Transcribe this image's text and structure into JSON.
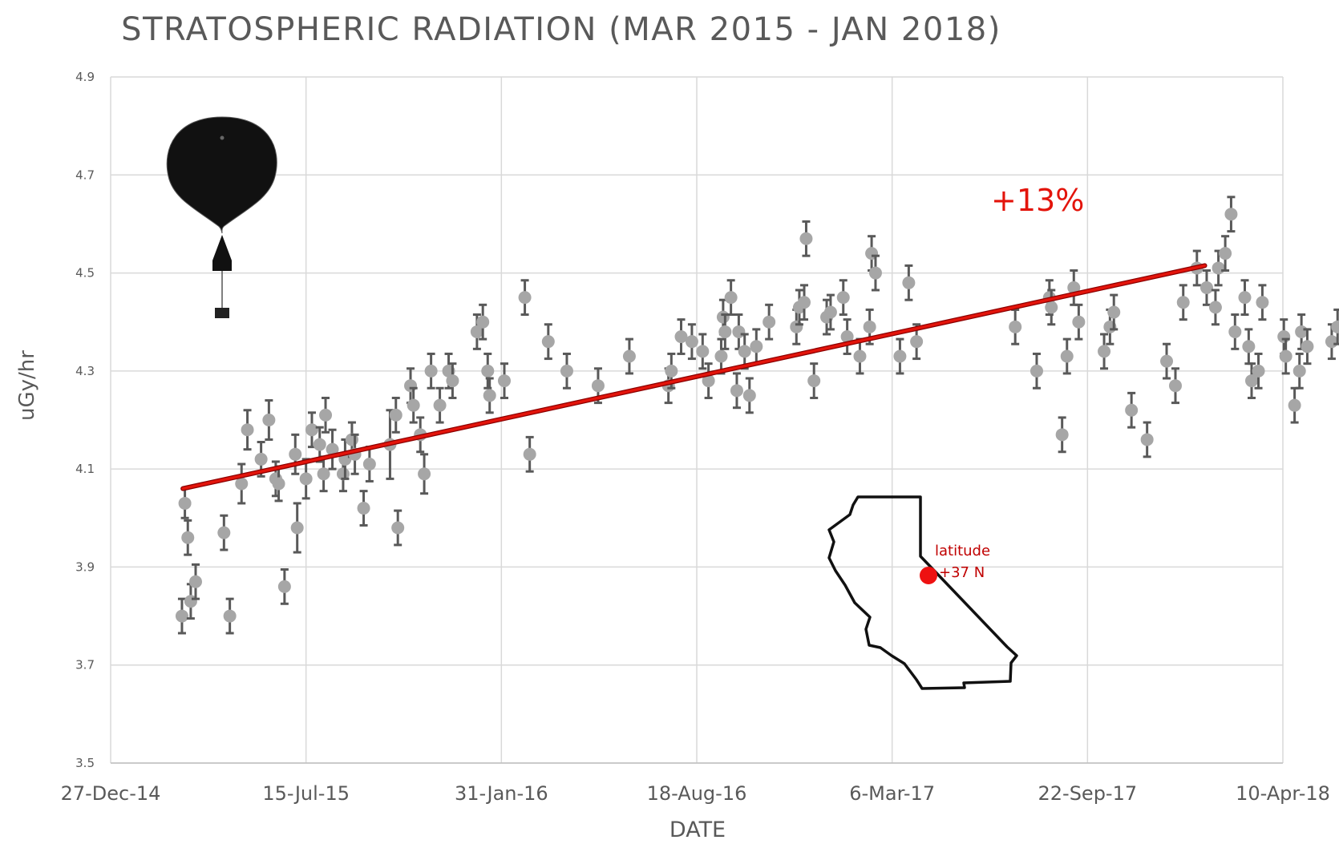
{
  "chart_data": {
    "type": "scatter",
    "title": "STRATOSPHERIC RADIATION (MAR 2015 - JAN 2018)",
    "xlabel": "DATE",
    "ylabel": "uGy/hr",
    "x_ticks": [
      "27-Dec-14",
      "15-Jul-15",
      "31-Jan-16",
      "18-Aug-16",
      "6-Mar-17",
      "22-Sep-17",
      "10-Apr-18"
    ],
    "x_range_days": [
      0,
      1200
    ],
    "ylim": [
      3.5,
      4.9
    ],
    "y_ticks": [
      "3.5",
      "3.7",
      "3.9",
      "4.1",
      "4.3",
      "4.5",
      "4.7",
      "4.9"
    ],
    "grid": true,
    "annotation_trend": "+13%",
    "annotation_lat_line1": "latitude",
    "annotation_lat_line2": "+37 N",
    "trend_line": {
      "x_start_days": 74,
      "y_start": 4.06,
      "x_end_days": 1120,
      "y_end": 4.515,
      "color": "#e3140b"
    },
    "series": [
      {
        "name": "dose rate",
        "x_days": [
          73,
          76,
          79,
          82,
          87,
          116,
          122,
          134,
          140,
          154,
          162,
          169,
          172,
          178,
          189,
          191,
          200,
          206,
          214,
          218,
          220,
          227,
          238,
          240,
          247,
          250,
          259,
          265,
          286,
          292,
          294,
          307,
          310,
          317,
          321,
          328,
          337,
          346,
          350,
          375,
          381,
          386,
          388,
          403,
          424,
          429,
          448,
          467,
          499,
          531,
          571,
          574,
          584,
          595,
          606,
          612,
          625,
          627,
          629,
          635,
          641,
          643,
          649,
          654,
          661,
          674,
          702,
          705,
          710,
          712,
          720,
          733,
          737,
          750,
          754,
          767,
          777,
          779,
          783,
          808,
          817,
          825,
          926,
          948,
          961,
          963,
          974,
          979,
          986,
          991,
          1017,
          1023,
          1027,
          1045,
          1061,
          1081,
          1090,
          1098,
          1112,
          1122,
          1131,
          1134,
          1141,
          1147,
          1151,
          1161,
          1165,
          1168,
          1175,
          1179,
          1201,
          1203,
          1212,
          1217,
          1219,
          1225,
          1250,
          1256
        ],
        "values": [
          3.8,
          4.03,
          3.96,
          3.83,
          3.87,
          3.97,
          3.8,
          4.07,
          4.18,
          4.12,
          4.2,
          4.08,
          4.07,
          3.86,
          4.13,
          3.98,
          4.08,
          4.18,
          4.15,
          4.09,
          4.21,
          4.14,
          4.09,
          4.12,
          4.16,
          4.13,
          4.02,
          4.11,
          4.15,
          4.21,
          3.98,
          4.27,
          4.23,
          4.17,
          4.09,
          4.3,
          4.23,
          4.3,
          4.28,
          4.38,
          4.4,
          4.3,
          4.25,
          4.28,
          4.45,
          4.13,
          4.36,
          4.3,
          4.27,
          4.33,
          4.27,
          4.3,
          4.37,
          4.36,
          4.34,
          4.28,
          4.33,
          4.41,
          4.38,
          4.45,
          4.26,
          4.38,
          4.34,
          4.25,
          4.35,
          4.4,
          4.39,
          4.43,
          4.44,
          4.57,
          4.28,
          4.41,
          4.42,
          4.45,
          4.37,
          4.33,
          4.39,
          4.54,
          4.5,
          4.33,
          4.48,
          4.36,
          4.39,
          4.3,
          4.45,
          4.43,
          4.17,
          4.33,
          4.47,
          4.4,
          4.34,
          4.39,
          4.42,
          4.22,
          4.16,
          4.32,
          4.27,
          4.44,
          4.51,
          4.47,
          4.43,
          4.51,
          4.54,
          4.62,
          4.38,
          4.45,
          4.35,
          4.28,
          4.3,
          4.44,
          4.37,
          4.33,
          4.23,
          4.3,
          4.38,
          4.35,
          4.36,
          4.39
        ],
        "errors": [
          0.035,
          0.03,
          0.035,
          0.035,
          0.035,
          0.035,
          0.035,
          0.04,
          0.04,
          0.035,
          0.04,
          0.035,
          0.035,
          0.035,
          0.04,
          0.05,
          0.04,
          0.035,
          0.035,
          0.035,
          0.035,
          0.04,
          0.035,
          0.04,
          0.035,
          0.04,
          0.035,
          0.035,
          0.07,
          0.035,
          0.035,
          0.035,
          0.035,
          0.035,
          0.04,
          0.035,
          0.035,
          0.035,
          0.035,
          0.035,
          0.035,
          0.035,
          0.035,
          0.035,
          0.035,
          0.035,
          0.035,
          0.035,
          0.035,
          0.035,
          0.035,
          0.035,
          0.035,
          0.035,
          0.035,
          0.035,
          0.035,
          0.035,
          0.035,
          0.035,
          0.035,
          0.035,
          0.035,
          0.035,
          0.035,
          0.035,
          0.035,
          0.035,
          0.035,
          0.035,
          0.035,
          0.035,
          0.035,
          0.035,
          0.035,
          0.035,
          0.035,
          0.035,
          0.035,
          0.035,
          0.035,
          0.035,
          0.035,
          0.035,
          0.035,
          0.035,
          0.035,
          0.035,
          0.035,
          0.035,
          0.035,
          0.035,
          0.035,
          0.035,
          0.035,
          0.035,
          0.035,
          0.035,
          0.035,
          0.035,
          0.035,
          0.035,
          0.035,
          0.035,
          0.035,
          0.035,
          0.035,
          0.035,
          0.035,
          0.035,
          0.035,
          0.035,
          0.035,
          0.035,
          0.035,
          0.035,
          0.035,
          0.035
        ]
      }
    ]
  }
}
